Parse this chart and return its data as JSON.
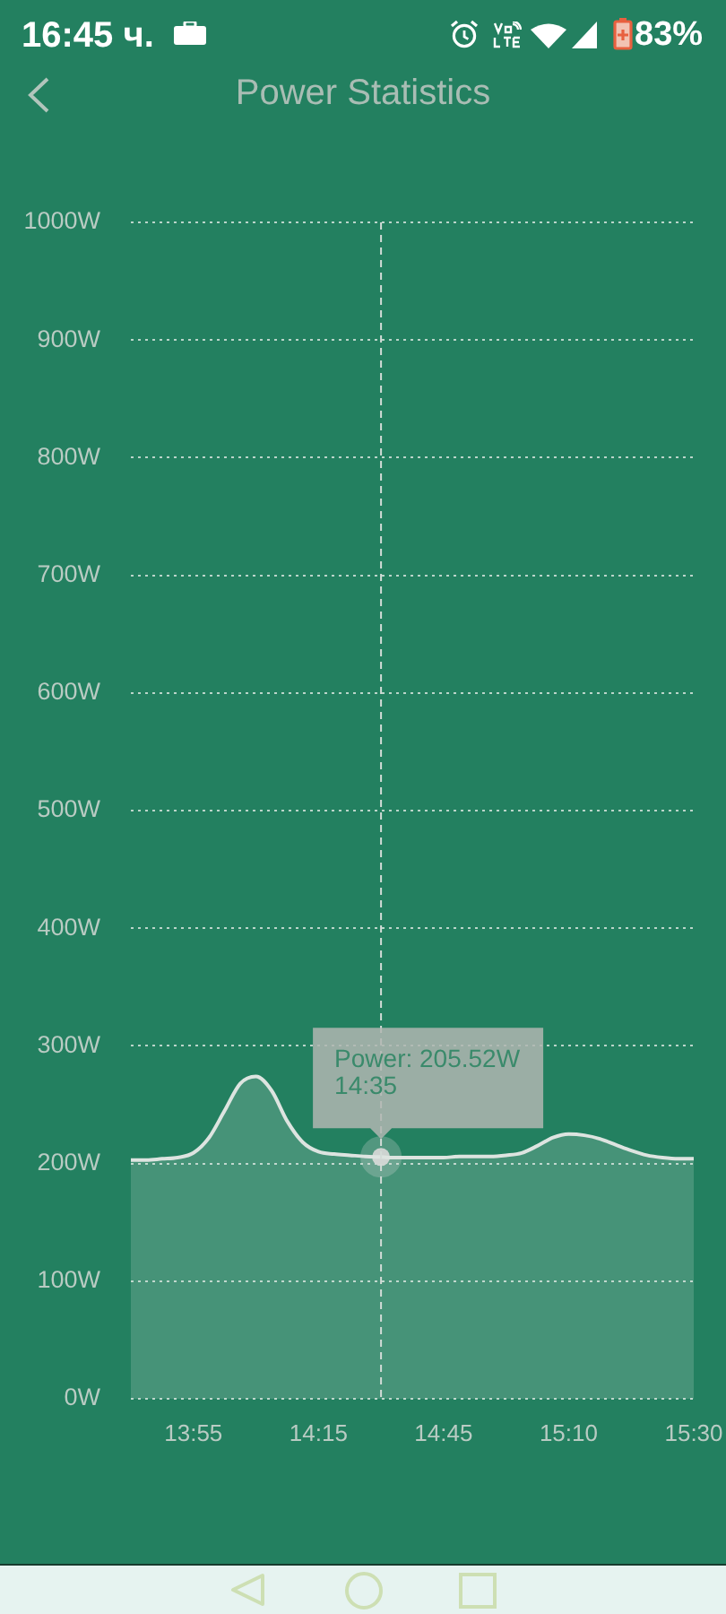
{
  "chart_data": {
    "type": "area",
    "title": "Power Statistics",
    "categories": [
      null,
      null,
      null,
      null,
      "13:55",
      null,
      null,
      null,
      null,
      null,
      null,
      null,
      "14:15",
      null,
      null,
      null,
      null,
      null,
      null,
      null,
      "14:45",
      null,
      null,
      null,
      null,
      null,
      null,
      null,
      "15:10",
      null,
      null,
      null,
      null,
      null,
      null,
      null,
      "15:30"
    ],
    "series": [
      {
        "color": "#dde4e0",
        "values": [
          203,
          203,
          204,
          205,
          209,
          222,
          245,
          268,
          274,
          262,
          236,
          218,
          210,
          208,
          207,
          206,
          205.52,
          205,
          205,
          205,
          205,
          206,
          206,
          206,
          207,
          209,
          215,
          222,
          225,
          224,
          221,
          216,
          211,
          207,
          205,
          204,
          204
        ]
      },
      {
        "type": "scatter",
        "color": "#cdd3d0",
        "values": [
          null,
          null,
          null,
          null,
          null,
          null,
          null,
          null,
          null,
          null,
          null,
          null,
          null,
          null,
          null,
          null,
          205.52,
          null,
          null,
          null,
          null,
          null,
          null,
          null,
          null,
          null,
          null,
          null,
          null,
          null,
          null,
          null,
          null,
          null,
          null,
          null,
          null
        ],
        "value_labels": [
          null,
          null,
          null,
          null,
          null,
          null,
          null,
          null,
          null,
          null,
          null,
          null,
          null,
          null,
          null,
          null,
          "Power: 205.52W\n14:35",
          null,
          null,
          null,
          null,
          null,
          null,
          null,
          null,
          null,
          null,
          null,
          null,
          null,
          null,
          null,
          null,
          null,
          null,
          null,
          null
        ]
      }
    ],
    "ylim": [
      0,
      1000
    ],
    "yticks": [
      {
        "value": 0,
        "label": "0W"
      },
      {
        "value": 100,
        "label": "100W"
      },
      {
        "value": 200,
        "label": "200W"
      },
      {
        "value": 300,
        "label": "300W"
      },
      {
        "value": 400,
        "label": "400W"
      },
      {
        "value": 500,
        "label": "500W"
      },
      {
        "value": 600,
        "label": "600W"
      },
      {
        "value": 700,
        "label": "700W"
      },
      {
        "value": 800,
        "label": "800W"
      },
      {
        "value": 900,
        "label": "900W"
      },
      {
        "value": 1000,
        "label": "1000W"
      }
    ],
    "grid": "y",
    "annotations": [
      "16:45 ч.",
      "83%"
    ]
  }
}
